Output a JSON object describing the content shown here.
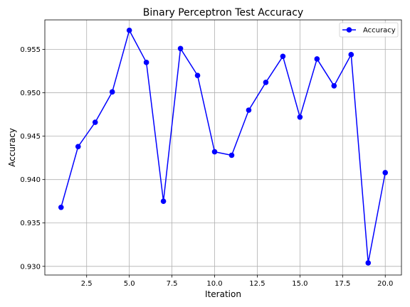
{
  "chart_data": {
    "type": "line",
    "title": "Binary Perceptron Test Accuracy",
    "xlabel": "Iteration",
    "ylabel": "Accuracy",
    "xlim": [
      0.05,
      20.95
    ],
    "ylim": [
      0.929,
      0.9584
    ],
    "xticks": [
      2.5,
      5.0,
      7.5,
      10.0,
      12.5,
      15.0,
      17.5,
      20.0
    ],
    "xtick_labels": [
      "2.5",
      "5.0",
      "7.5",
      "10.0",
      "12.5",
      "15.0",
      "17.5",
      "20.0"
    ],
    "yticks": [
      0.93,
      0.935,
      0.94,
      0.945,
      0.95,
      0.955
    ],
    "ytick_labels": [
      "0.930",
      "0.935",
      "0.940",
      "0.945",
      "0.950",
      "0.955"
    ],
    "grid": true,
    "legend_position": "top-right",
    "series": [
      {
        "name": "Accuracy",
        "color": "#0000ff",
        "marker": "circle",
        "x": [
          1,
          2,
          3,
          4,
          5,
          6,
          7,
          8,
          9,
          10,
          11,
          12,
          13,
          14,
          15,
          16,
          17,
          18,
          19,
          20
        ],
        "values": [
          0.9368,
          0.9438,
          0.9466,
          0.9501,
          0.9572,
          0.9535,
          0.9375,
          0.9551,
          0.952,
          0.9432,
          0.9428,
          0.948,
          0.9512,
          0.9542,
          0.9472,
          0.9539,
          0.9508,
          0.9544,
          0.9304,
          0.9408
        ]
      }
    ]
  }
}
